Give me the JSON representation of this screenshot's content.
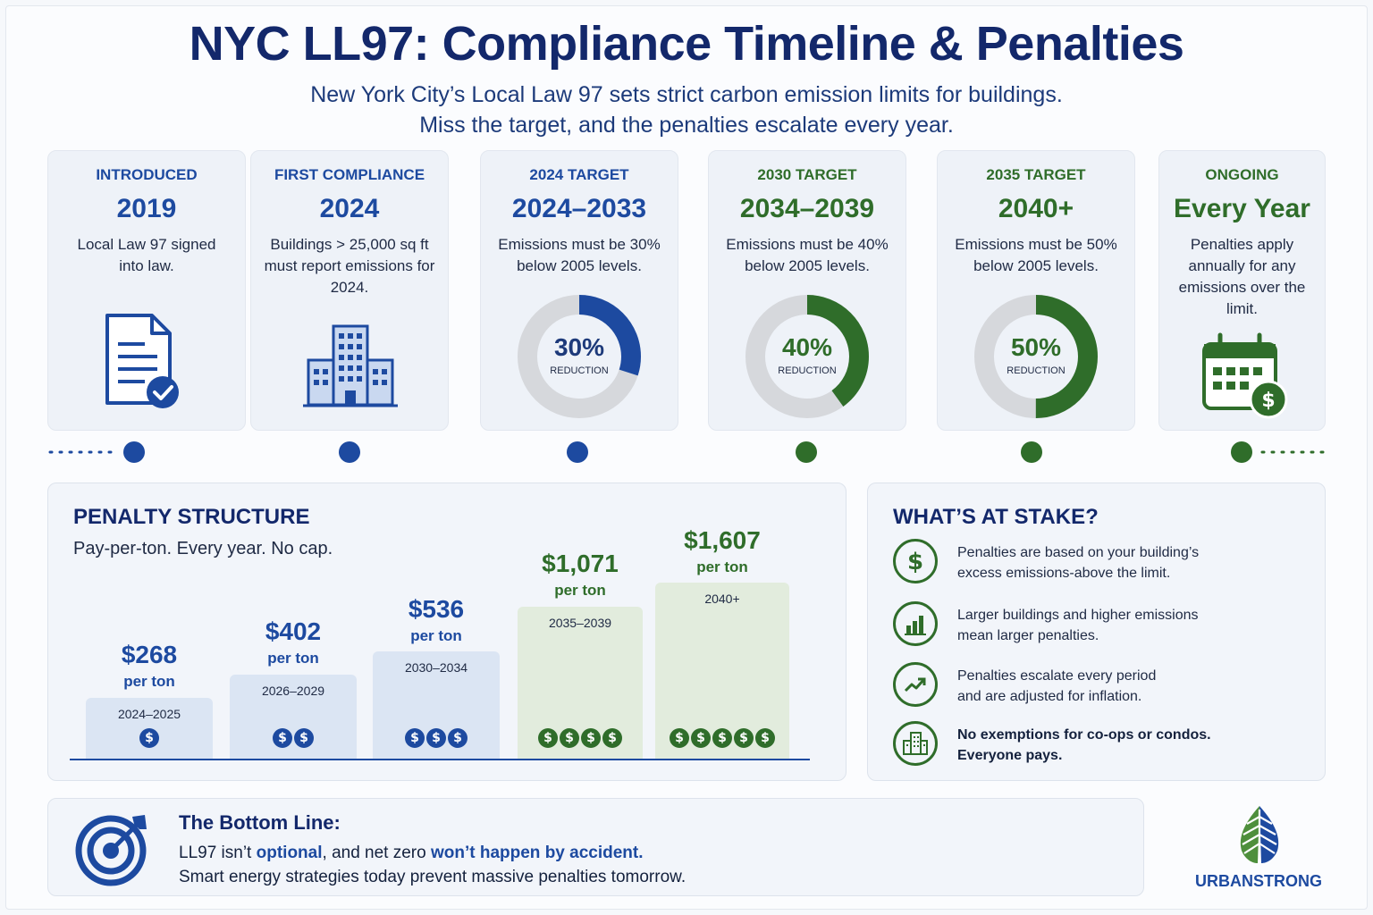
{
  "header": {
    "title": "NYC LL97: Compliance Timeline & Penalties",
    "subtitle_line1": "New York City’s Local Law 97 sets strict carbon emission limits for buildings.",
    "subtitle_line2": "Miss the target, and the penalties escalate  every year."
  },
  "timeline_cards": [
    {
      "kicker": "INTRODUCED",
      "year": "2019",
      "desc": "Local Law 97 signed into law.",
      "icon": "document-check-icon"
    },
    {
      "kicker": "FIRST COMPLIANCE",
      "year": "2024",
      "desc": "Buildings > 25,000 sq ft must report emissions for 2024.",
      "icon": "building-icon"
    },
    {
      "kicker": "2024 TARGET",
      "year": "2024–2033",
      "desc": "Emissions must be 30% below 2005 levels.",
      "pct_label": "30%",
      "reduction_label": "REDUCTION",
      "reduction": 0.3
    },
    {
      "kicker": "2030 TARGET",
      "year": "2034–2039",
      "desc": "Emissions must be 40% below 2005 levels.",
      "pct_label": "40%",
      "reduction_label": "REDUCTION",
      "reduction": 0.4
    },
    {
      "kicker": "2035 TARGET",
      "year": "2040+",
      "desc": "Emissions must be 50% below 2005 levels.",
      "pct_label": "50%",
      "reduction_label": "REDUCTION",
      "reduction": 0.5
    },
    {
      "kicker": "ONGOING",
      "year": "Every Year",
      "desc": "Penalties apply annually for any emissions over the limit.",
      "icon": "calendar-dollar-icon"
    }
  ],
  "penalty": {
    "title": "PENALTY STRUCTURE",
    "subtitle": "Pay-per-ton. Every year. No cap.",
    "per_label": "per ton",
    "tiers": [
      {
        "price": "$268",
        "range": "2024–2025",
        "coins": 1
      },
      {
        "price": "$402",
        "range": "2026–2029",
        "coins": 2
      },
      {
        "price": "$536",
        "range": "2030–2034",
        "coins": 3
      },
      {
        "price": "$1,071",
        "range": "2035–2039",
        "coins": 4
      },
      {
        "price": "$1,607",
        "range": "2040+",
        "coins": 5
      }
    ],
    "coin_symbol": "$"
  },
  "stake": {
    "title": "WHAT’S AT STAKE?",
    "items": [
      {
        "line1": "Penalties are based on your building’s",
        "line2": "excess emissions-above the limit.",
        "icon": "dollar-icon"
      },
      {
        "line1": "Larger buildings and higher emissions",
        "line2": "mean larger penalties.",
        "icon": "bar-chart-icon"
      },
      {
        "line1": "Penalties escalate every period",
        "line2": "and are adjusted for inflation.",
        "icon": "trend-up-icon"
      },
      {
        "line1": "No exemptions for co-ops or condos.",
        "line2": "Everyone pays.",
        "icon": "buildings-icon"
      }
    ]
  },
  "bottom": {
    "title": "The Bottom Line:",
    "l1_a": "LL97 isn’t ",
    "l1_b": "optional",
    "l1_c": ", and net zero ",
    "l1_d": "won’t happen by accident.",
    "l2": "Smart energy strategies today prevent massive penalties tomorrow."
  },
  "brand": {
    "name": "URBANSTRONG"
  },
  "colors": {
    "navy": "#13286b",
    "blue": "#1d4aa0",
    "green": "#2f6d2a",
    "gray": "#d6d8dc"
  }
}
